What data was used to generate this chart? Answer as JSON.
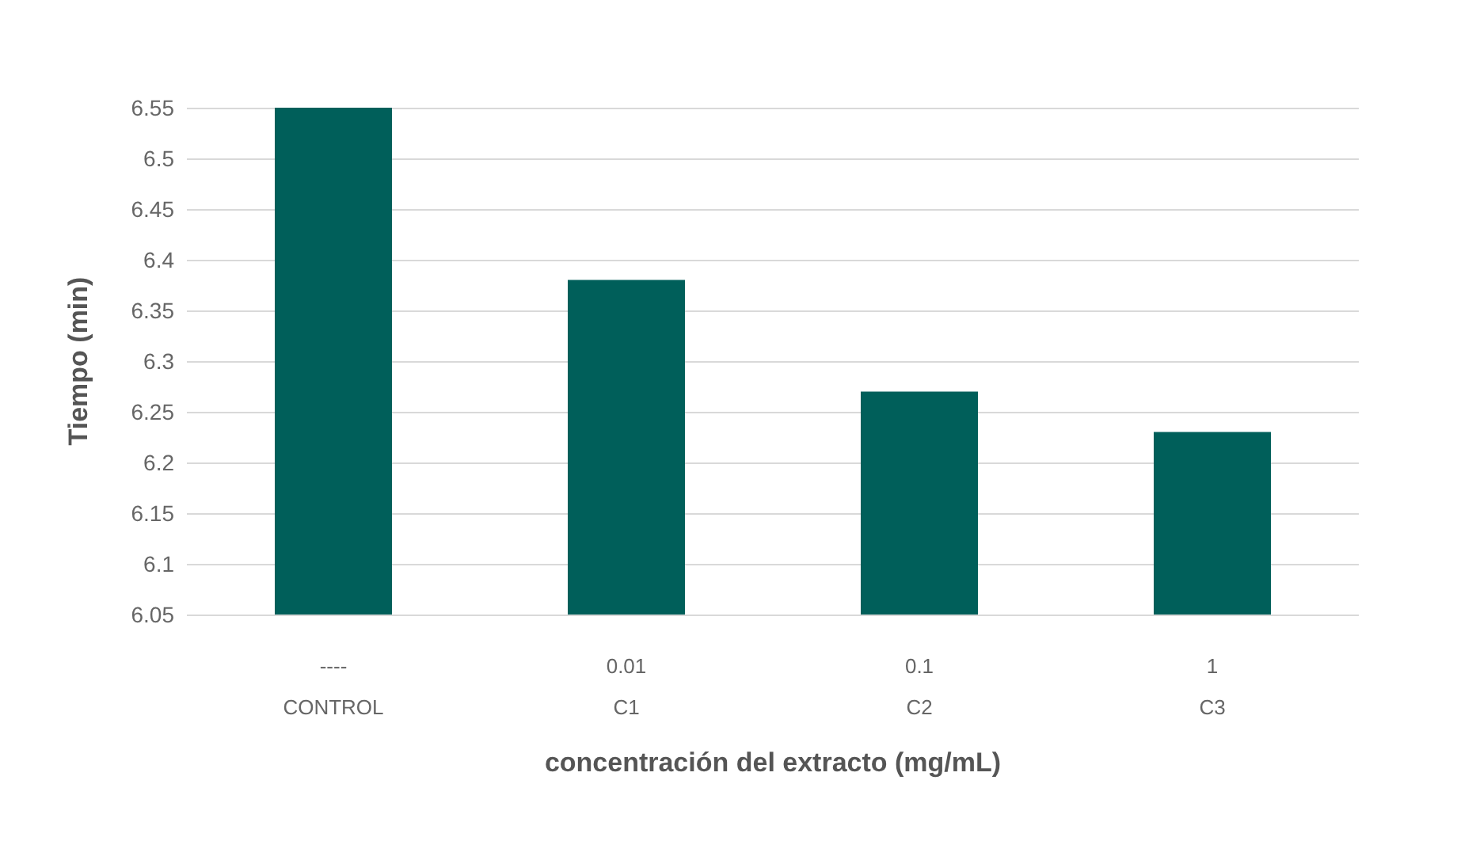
{
  "chart_data": {
    "type": "bar",
    "xlabel": "concentración del extracto (mg/mL)",
    "ylabel": "Tiempo (min)",
    "categories": [
      "----\n\nCONTROL",
      "0.01\n\nC1",
      "0.1\n\nC2",
      "1\n\nC3"
    ],
    "values": [
      6.55,
      6.38,
      6.27,
      6.23
    ],
    "color": "#005f5a",
    "ylim": [
      6.05,
      6.55
    ],
    "yticks": [
      6.05,
      6.1,
      6.15,
      6.2,
      6.25,
      6.3,
      6.35,
      6.4,
      6.45,
      6.5,
      6.55
    ],
    "grid": "y"
  }
}
